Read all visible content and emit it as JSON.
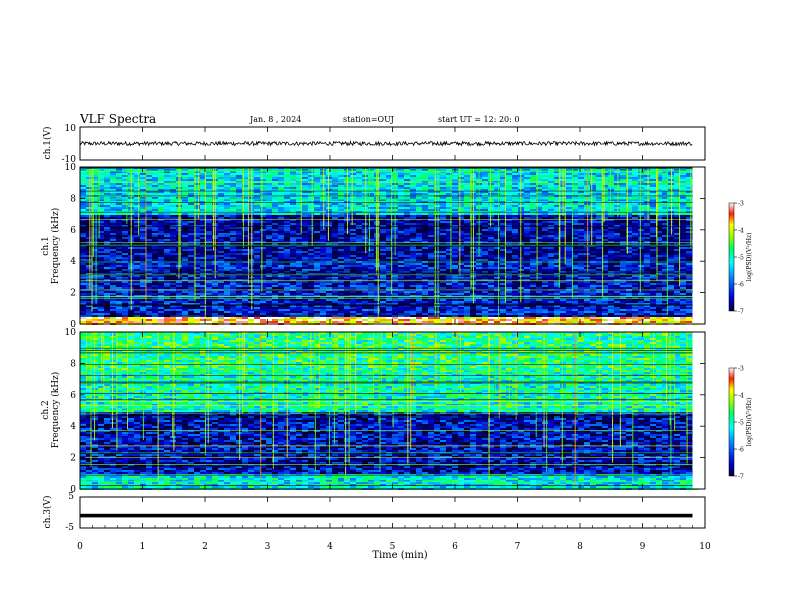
{
  "header": {
    "title": "VLF Spectra",
    "date": "Jan. 8 , 2024",
    "station": "station=OUJ",
    "start_time": "start UT =  12: 20: 0"
  },
  "chart_data": [
    {
      "type": "line",
      "panel": "ch1-waveform",
      "ylabel": "ch.1(V)",
      "ylim": [
        -10,
        10
      ],
      "yticks": [
        "10",
        "-10"
      ],
      "series": [
        {
          "x_range_min": [
            0,
            9.8
          ],
          "approx_level": 0.0,
          "noise_amplitude": 1.2,
          "color": "#000000"
        }
      ]
    },
    {
      "type": "heatmap",
      "panel": "ch1-spectrogram",
      "ylabel": "ch.1\nFrequency (kHz)",
      "ylim": [
        0,
        10
      ],
      "yticks": [
        "0",
        "2",
        "4",
        "6",
        "8",
        "10"
      ],
      "x_range_min": [
        0,
        9.8
      ],
      "colorbar": {
        "label": "log(PSD)(V²/Hz)",
        "range": [
          -7,
          -3
        ],
        "ticks": [
          "-3",
          "-4",
          "-5",
          "-6",
          "-7"
        ]
      },
      "dominant_level_by_band_khz": [
        {
          "band": [
            0,
            0.5
          ],
          "log_psd": -3.5
        },
        {
          "band": [
            0.5,
            4
          ],
          "log_psd": -6.4
        },
        {
          "band": [
            4,
            7
          ],
          "log_psd": -6.6
        },
        {
          "band": [
            7,
            10
          ],
          "log_psd": -5.3
        }
      ]
    },
    {
      "type": "heatmap",
      "panel": "ch2-spectrogram",
      "ylabel": "ch.2\nFrequency (kHz)",
      "ylim": [
        0,
        10
      ],
      "yticks": [
        "0",
        "2",
        "4",
        "6",
        "8",
        "10"
      ],
      "x_range_min": [
        0,
        9.8
      ],
      "colorbar": {
        "label": "log(PSD)(V²/Hz)",
        "range": [
          -7,
          -3
        ],
        "ticks": [
          "-3",
          "-4",
          "-5",
          "-6",
          "-7"
        ]
      },
      "dominant_level_by_band_khz": [
        {
          "band": [
            0,
            1
          ],
          "log_psd": -5.2
        },
        {
          "band": [
            1,
            5
          ],
          "log_psd": -6.5
        },
        {
          "band": [
            5,
            7.5
          ],
          "log_psd": -5.0
        },
        {
          "band": [
            7.5,
            10
          ],
          "log_psd": -4.8
        }
      ]
    },
    {
      "type": "line",
      "panel": "ch3-waveform",
      "ylabel": "ch.3(V)",
      "ylim": [
        -5,
        5
      ],
      "yticks": [
        "5",
        "0",
        "-5"
      ],
      "xlabel": "Time (min)",
      "xlim": [
        0,
        10
      ],
      "xticks": [
        "0",
        "1",
        "2",
        "3",
        "4",
        "5",
        "6",
        "7",
        "8",
        "9",
        "10"
      ],
      "series": [
        {
          "x_range_min": [
            0,
            9.8
          ],
          "approx_level": -1.0,
          "color": "#000000"
        }
      ]
    }
  ]
}
